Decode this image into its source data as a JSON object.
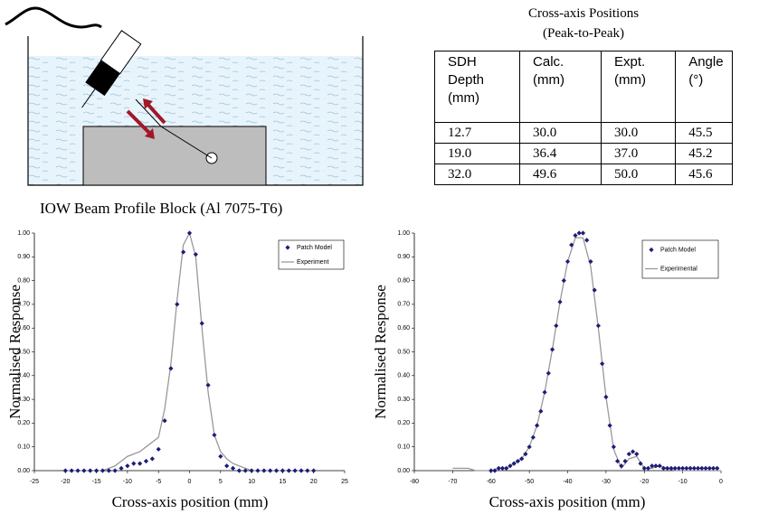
{
  "diagram": {
    "caption": "IOW Beam Profile Block  (Al  7075-T6)"
  },
  "table": {
    "title": [
      "Cross-axis Positions",
      "(Peak-to-Peak)"
    ],
    "columns": [
      [
        "SDH",
        "Depth",
        "(mm)"
      ],
      [
        "Calc.",
        "(mm)"
      ],
      [
        "Expt.",
        "(mm)"
      ],
      [
        "Angle",
        "(°)"
      ]
    ],
    "rows": [
      [
        "12.7",
        "30.0",
        "30.0",
        "45.5"
      ],
      [
        "19.0",
        "36.4",
        "37.0",
        "45.2"
      ],
      [
        "32.0",
        "49.6",
        "50.0",
        "45.6"
      ]
    ]
  },
  "chart_data": [
    {
      "type": "line",
      "xlabel": "Cross-axis position (mm)",
      "ylabel": "Normalised Response",
      "legend": "top-right",
      "xlim": [
        -25,
        25
      ],
      "xticks": [
        -25,
        -20,
        -15,
        -10,
        -5,
        0,
        5,
        10,
        15,
        20,
        25
      ],
      "ylim": [
        0,
        1
      ],
      "yticks": [
        {
          "value": 0,
          "label": "0.00"
        },
        {
          "value": 0.1,
          "label": "0.10"
        },
        {
          "value": 0.2,
          "label": "0.20"
        },
        {
          "value": 0.3,
          "label": "0.30"
        },
        {
          "value": 0.4,
          "label": "0.40"
        },
        {
          "value": 0.5,
          "label": "0.50"
        },
        {
          "value": 0.6,
          "label": "0.60"
        },
        {
          "value": 0.7,
          "label": "0.70"
        },
        {
          "value": 0.8,
          "label": "0.80"
        },
        {
          "value": 0.9,
          "label": "0.90"
        },
        {
          "value": 1,
          "label": "1.00"
        }
      ],
      "series": [
        {
          "name": "Patch Model",
          "kind": "scatter",
          "color": "#1c1c78",
          "x": [
            -20,
            -19,
            -18,
            -17,
            -16,
            -15,
            -14,
            -13,
            -12,
            -11,
            -10,
            -9,
            -8,
            -7,
            -6,
            -5,
            -4,
            -3,
            -2,
            -1,
            0,
            1,
            2,
            3,
            4,
            5,
            6,
            7,
            8,
            9,
            10,
            11,
            12,
            13,
            14,
            15,
            16,
            17,
            18,
            19,
            20
          ],
          "values": [
            0,
            0,
            0,
            0,
            0,
            0,
            0,
            0,
            0,
            0.01,
            0.02,
            0.03,
            0.03,
            0.04,
            0.05,
            0.09,
            0.21,
            0.43,
            0.7,
            0.92,
            1,
            0.91,
            0.62,
            0.36,
            0.15,
            0.06,
            0.02,
            0.01,
            0,
            0,
            0,
            0,
            0,
            0,
            0,
            0,
            0,
            0,
            0,
            0,
            0
          ]
        },
        {
          "name": "Experiment",
          "kind": "line",
          "color": "#999999",
          "x": [
            -20,
            -19,
            -18,
            -17,
            -16,
            -15,
            -14,
            -13,
            -12,
            -11,
            -10,
            -9,
            -8,
            -7,
            -6,
            -5,
            -4,
            -3,
            -2,
            -1,
            0,
            1,
            2,
            3,
            4,
            5,
            6,
            7,
            8,
            9,
            10,
            11,
            12,
            13,
            14,
            15,
            16,
            17,
            18,
            19,
            20
          ],
          "values": [
            0,
            0,
            0,
            0,
            0,
            0,
            0,
            0.01,
            0.02,
            0.04,
            0.06,
            0.07,
            0.08,
            0.1,
            0.12,
            0.14,
            0.26,
            0.45,
            0.72,
            0.95,
            1,
            0.9,
            0.6,
            0.33,
            0.15,
            0.08,
            0.05,
            0.03,
            0.02,
            0.01,
            0,
            0,
            0,
            0,
            0,
            0,
            0,
            0,
            0,
            0,
            0
          ]
        }
      ]
    },
    {
      "type": "line",
      "xlabel": "Cross-axis position (mm)",
      "ylabel": "Normalised Response",
      "legend": "top-right",
      "xlim": [
        -80,
        0
      ],
      "xticks": [
        -80,
        -70,
        -60,
        -50,
        -40,
        -30,
        -20,
        -10,
        0
      ],
      "ylim": [
        0,
        1
      ],
      "yticks": [
        {
          "value": 0,
          "label": "0.00"
        },
        {
          "value": 0.1,
          "label": "0.10"
        },
        {
          "value": 0.2,
          "label": "0.20"
        },
        {
          "value": 0.3,
          "label": "0.30"
        },
        {
          "value": 0.4,
          "label": "0.40"
        },
        {
          "value": 0.5,
          "label": "0.50"
        },
        {
          "value": 0.6,
          "label": "0.60"
        },
        {
          "value": 0.7,
          "label": "0.70"
        },
        {
          "value": 0.8,
          "label": "0.80"
        },
        {
          "value": 0.9,
          "label": "0.90"
        },
        {
          "value": 1,
          "label": "1.00"
        }
      ],
      "series": [
        {
          "name": "Patch Model",
          "kind": "scatter",
          "color": "#1c1c78",
          "x": [
            -60,
            -59,
            -58,
            -57,
            -56,
            -55,
            -54,
            -53,
            -52,
            -51,
            -50,
            -49,
            -48,
            -47,
            -46,
            -45,
            -44,
            -43,
            -42,
            -41,
            -40,
            -39,
            -38,
            -37,
            -36,
            -35,
            -34,
            -33,
            -32,
            -31,
            -30,
            -29,
            -28,
            -27,
            -26,
            -25,
            -24,
            -23,
            -22,
            -21,
            -20,
            -19,
            -18,
            -17,
            -16,
            -15,
            -14,
            -13,
            -12,
            -11,
            -10,
            -9,
            -8,
            -7,
            -6,
            -5,
            -4,
            -3,
            -2,
            -1
          ],
          "values": [
            0,
            0,
            0.01,
            0.01,
            0.01,
            0.02,
            0.03,
            0.04,
            0.05,
            0.07,
            0.1,
            0.14,
            0.19,
            0.25,
            0.33,
            0.41,
            0.51,
            0.61,
            0.71,
            0.8,
            0.88,
            0.95,
            0.99,
            1,
            1,
            0.97,
            0.88,
            0.76,
            0.61,
            0.45,
            0.31,
            0.19,
            0.1,
            0.04,
            0.02,
            0.04,
            0.07,
            0.08,
            0.07,
            0.03,
            0.01,
            0.01,
            0.02,
            0.02,
            0.02,
            0.01,
            0.01,
            0.01,
            0.01,
            0.01,
            0.01,
            0.01,
            0.01,
            0.01,
            0.01,
            0.01,
            0.01,
            0.01,
            0.01,
            0.01
          ]
        },
        {
          "name": "Experimental",
          "kind": "line",
          "color": "#999999",
          "x": [
            -70,
            -68,
            -66,
            -64,
            -62,
            -60,
            -58,
            -56,
            -54,
            -52,
            -50,
            -48,
            -46,
            -44,
            -42,
            -40,
            -38,
            -36,
            -34,
            -32,
            -30,
            -28,
            -26,
            -24,
            -22,
            -20,
            -18,
            -16,
            -14,
            -12,
            -10,
            -8,
            -6,
            -4,
            -2,
            0
          ],
          "values": [
            0.01,
            0.01,
            0.01,
            0,
            0,
            0,
            0.01,
            0.01,
            0.03,
            0.05,
            0.1,
            0.19,
            0.33,
            0.51,
            0.71,
            0.88,
            0.98,
            0.98,
            0.86,
            0.6,
            0.31,
            0.09,
            0.01,
            0.05,
            0.06,
            0.01,
            0.01,
            0.02,
            0.01,
            0,
            0,
            0,
            0,
            0,
            0,
            0
          ]
        }
      ]
    }
  ]
}
